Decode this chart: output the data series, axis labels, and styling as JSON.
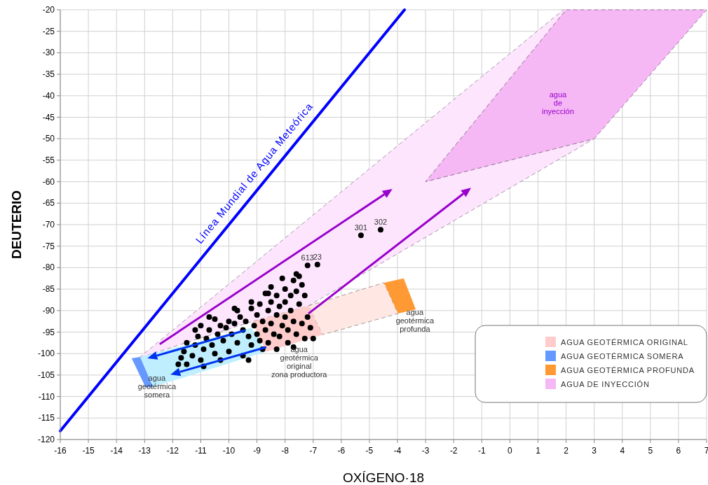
{
  "chart_data": {
    "type": "scatter",
    "xlabel": "OXÍGENO·18",
    "ylabel": "DEUTERIO",
    "xlim": [
      -16,
      7
    ],
    "xticks": [
      -16,
      -15,
      -14,
      -13,
      -12,
      -11,
      -10,
      -9,
      -8,
      -7,
      -6,
      -5,
      -4,
      -3,
      -2,
      -1,
      0,
      1,
      2,
      3,
      4,
      5,
      6,
      7
    ],
    "ylim": [
      -120,
      -20
    ],
    "yticks": [
      -120,
      -115,
      -110,
      -105,
      -100,
      -95,
      -90,
      -85,
      -80,
      -75,
      -70,
      -65,
      -60,
      -55,
      -50,
      -45,
      -40,
      -35,
      -30,
      -25,
      -20
    ],
    "grid": true,
    "legend": "bottom right",
    "series": [
      {
        "type": "area",
        "color": "#fde6fd",
        "line_style": "dashed",
        "x": [
          -13.2,
          1.9,
          2,
          -3,
          3,
          -7.2,
          -9.2
        ],
        "values": [
          -101,
          -20,
          -20,
          -60,
          -50,
          -89,
          -92.6
        ]
      },
      {
        "type": "area",
        "color": "#bfefff",
        "x": [
          -13.16,
          -9.2,
          -8.7,
          -12.7
        ],
        "values": [
          -100.8,
          -94,
          -99.6,
          -107.8
        ]
      },
      {
        "type": "area",
        "color": "#ffe8e4",
        "line_style": "dashed",
        "x": [
          -7.17,
          -4.48,
          -3.98,
          -6.67
        ],
        "values": [
          -88.9,
          -83.5,
          -90.7,
          -95.6
        ]
      },
      {
        "type": "area",
        "name": "AGUA GEOTÉRMICA ORIGINAL",
        "color": "#ffcccc",
        "x": [
          -9.17,
          -7.17,
          -6.67,
          -8.67
        ],
        "values": [
          -92.6,
          -88.9,
          -95.6,
          -99.6
        ]
      },
      {
        "type": "area",
        "name": "AGUA GEOTÉRMICA SOMERA",
        "color": "#6699ff",
        "x": [
          -13.46,
          -13.16,
          -12.7,
          -12.96
        ],
        "values": [
          -101.1,
          -100.8,
          -107.8,
          -107.9
        ]
      },
      {
        "type": "area",
        "name": "AGUA GEOTÉRMICA PROFUNDA",
        "color": "#ff9933",
        "x": [
          -4.48,
          -3.78,
          -3.35,
          -3.98
        ],
        "values": [
          -83.5,
          -82.5,
          -89.7,
          -90.7
        ]
      },
      {
        "type": "area",
        "name": "AGUA DE INYECCIÓN",
        "color": "#f5b8f5",
        "line_style": "dashed",
        "x": [
          2,
          7,
          3,
          -3
        ],
        "values": [
          -20,
          -20,
          -50,
          -60
        ]
      },
      {
        "type": "line",
        "name": "Línea Mundial de Agua Meteórica",
        "color": "#0000ff",
        "x": [
          -16,
          -3.75
        ],
        "values": [
          -118,
          -20
        ]
      },
      {
        "color": "#000000",
        "marker": "circle",
        "x": [
          -11.8,
          -11.7,
          -11.6,
          -11.5,
          -11.3,
          -11.2,
          -11.1,
          -11,
          -10.9,
          -10.8,
          -10.7,
          -10.6,
          -10.5,
          -10.4,
          -10.3,
          -10.2,
          -10.1,
          -10,
          -10,
          -9.9,
          -9.8,
          -9.7,
          -9.6,
          -9.5,
          -9.5,
          -9.4,
          -9.3,
          -9.2,
          -9.2,
          -9.1,
          -9,
          -9,
          -8.9,
          -8.9,
          -8.8,
          -8.7,
          -8.7,
          -8.6,
          -8.6,
          -8.5,
          -8.5,
          -8.4,
          -8.3,
          -8.3,
          -8.2,
          -8.2,
          -8.1,
          -8,
          -8,
          -8,
          -7.9,
          -7.8,
          -7.8,
          -7.7,
          -7.7,
          -7.6,
          -7.6,
          -7.5,
          -7.5,
          -7.4,
          -7.4,
          -7.3,
          -7.2,
          -7.1,
          -7,
          -7.3,
          -7.9,
          -8.8,
          -10.3,
          -11.5,
          -9.7,
          -10.5,
          -11,
          -8.5,
          -7.6,
          -7.2,
          -6.85,
          -5.3,
          -4.6,
          -9.2,
          -9.8,
          -10.7,
          -11.2,
          -8.1,
          -8.6,
          -10.9,
          -9.3,
          -8.3,
          -7.7
        ],
        "values": [
          -102.5,
          -101,
          -99.5,
          -97.5,
          -100.5,
          -98,
          -96,
          -101.5,
          -99,
          -96.5,
          -94.5,
          -98,
          -100,
          -95.5,
          -93.5,
          -97,
          -94,
          -92.5,
          -99.5,
          -95.5,
          -93,
          -97.5,
          -91.5,
          -94.5,
          -100.5,
          -92.5,
          -96,
          -89.5,
          -98,
          -93.5,
          -91,
          -95.5,
          -88.5,
          -97,
          -92.5,
          -86,
          -94.5,
          -90,
          -97.5,
          -88,
          -93,
          -95.5,
          -86.5,
          -91,
          -89,
          -96,
          -93.5,
          -85,
          -88,
          -91.5,
          -94.5,
          -86.5,
          -90,
          -83,
          -92.5,
          -85.5,
          -95.5,
          -82,
          -88.5,
          -84,
          -93,
          -86.5,
          -91.5,
          -94,
          -96.5,
          -96.5,
          -97.5,
          -99,
          -101.5,
          -102.5,
          -90,
          -92,
          -93.5,
          -84.5,
          -81.5,
          -79.5,
          -79.3,
          -72.5,
          -71.2,
          -88,
          -89.5,
          -91.5,
          -94.5,
          -82.5,
          -86,
          -103,
          -101.5,
          -99,
          -98.5
        ]
      }
    ],
    "annotations": [
      "agua\nde\ninyección",
      {
        "text": "agua\ngeotérmica\nsomera",
        "x": -12.96,
        "y": -107.9
      },
      {
        "text": "agua\ngeotérmica\noriginal\nzona productora",
        "x": -7.5,
        "y": -99
      },
      {
        "text": "agua\ngeotérmica\nprofunda",
        "x": -3.98,
        "y": -90.7
      },
      {
        "text": "613",
        "x": -7.2,
        "y": -79.5
      },
      {
        "text": "23",
        "x": -6.85,
        "y": -79.3
      },
      {
        "text": "301",
        "x": -5.3,
        "y": -72.5
      },
      {
        "text": "302",
        "x": -4.6,
        "y": -71.2
      }
    ]
  }
}
